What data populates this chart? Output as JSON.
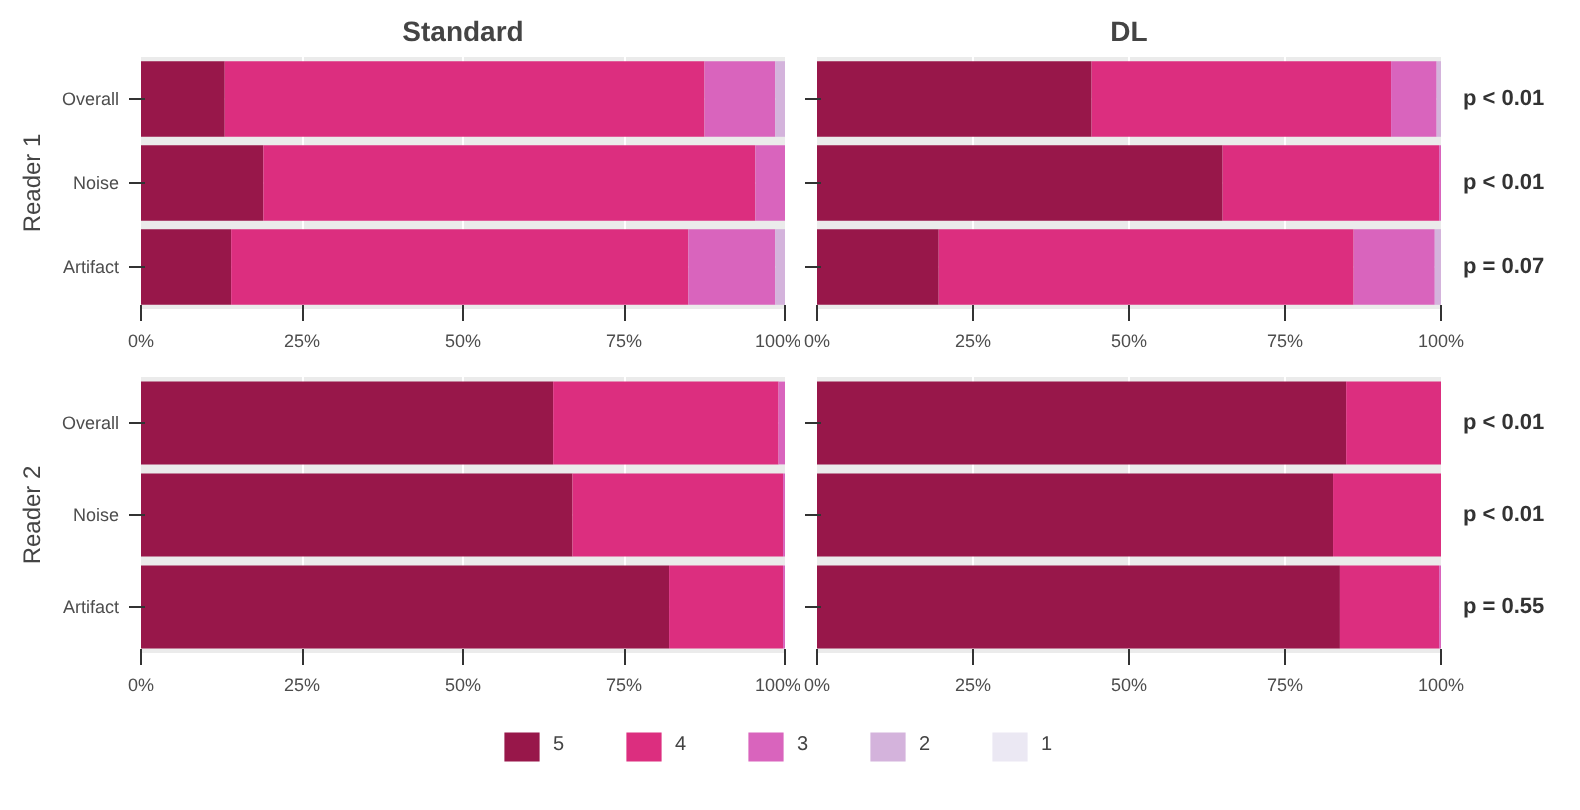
{
  "chart_data": [
    {
      "type": "bar",
      "orientation": "horizontal",
      "stacked": true,
      "title": "Standard",
      "ylabel": "Reader 1",
      "categories": [
        "Overall",
        "Noise",
        "Artifact"
      ],
      "series": [
        {
          "color": "#98174a",
          "values": [
            13,
            19,
            14
          ]
        },
        {
          "color": "#dc2e7f",
          "values": [
            74.5,
            76.4,
            71
          ]
        },
        {
          "color": "#d964bd",
          "values": [
            11,
            4.6,
            13.5
          ]
        },
        {
          "color": "#d4b3dc",
          "values": [
            1.5,
            0,
            1.5
          ]
        }
      ],
      "xlim": [
        0,
        100
      ],
      "xticks": [
        {
          "value": 0,
          "label": "0%"
        },
        {
          "value": 25,
          "label": "25%"
        },
        {
          "value": 50,
          "label": "50%"
        },
        {
          "value": 75,
          "label": "75%"
        },
        {
          "value": 100,
          "label": "100%"
        }
      ],
      "grid": true
    },
    {
      "type": "bar",
      "orientation": "horizontal",
      "stacked": true,
      "title": "DL",
      "categories": [
        null,
        null,
        null
      ],
      "series": [
        {
          "color": "#98174a",
          "values": [
            44,
            65,
            19.5
          ]
        },
        {
          "color": "#dc2e7f",
          "values": [
            48,
            34.7,
            66.5
          ]
        },
        {
          "color": "#d964bd",
          "values": [
            7.3,
            0.3,
            13
          ]
        },
        {
          "color": "#d4b3dc",
          "values": [
            0.7,
            0,
            1
          ]
        }
      ],
      "xlim": [
        0,
        100
      ],
      "xticks": [
        {
          "value": 0,
          "label": "0%"
        },
        {
          "value": 25,
          "label": "25%"
        },
        {
          "value": 50,
          "label": "50%"
        },
        {
          "value": 75,
          "label": "75%"
        },
        {
          "value": 100,
          "label": "100%"
        }
      ],
      "grid": true,
      "tick_labels": "x",
      "annotations": [
        "p < 0.01",
        "p < 0.01",
        "p = 0.07"
      ]
    },
    {
      "type": "bar",
      "orientation": "horizontal",
      "stacked": true,
      "ylabel": "Reader 2",
      "categories": [
        "Overall",
        "Noise",
        "Artifact"
      ],
      "series": [
        {
          "color": "#98174a",
          "values": [
            64,
            67,
            82
          ]
        },
        {
          "color": "#dc2e7f",
          "values": [
            35,
            32.7,
            17.7
          ]
        },
        {
          "color": "#d964bd",
          "values": [
            1,
            0.3,
            0.3
          ]
        }
      ],
      "xlim": [
        0,
        100
      ],
      "xticks": [
        {
          "value": 0,
          "label": "0%"
        },
        {
          "value": 25,
          "label": "25%"
        },
        {
          "value": 50,
          "label": "50%"
        },
        {
          "value": 75,
          "label": "75%"
        },
        {
          "value": 100,
          "label": "100%"
        }
      ],
      "grid": true
    },
    {
      "type": "bar",
      "orientation": "horizontal",
      "stacked": true,
      "categories": [
        null,
        null,
        null
      ],
      "series": [
        {
          "name": "5",
          "color": "#98174a",
          "values": [
            84.8,
            82.7,
            83.8
          ]
        },
        {
          "name": "4",
          "color": "#dc2e7f",
          "values": [
            15.2,
            17.3,
            15.9
          ]
        },
        {
          "name": "3",
          "color": "#d964bd",
          "values": [
            0,
            0,
            0.3
          ]
        },
        {
          "name": "2",
          "color": "#d4b3dc",
          "values": [
            0,
            0,
            0
          ]
        },
        {
          "name": "1",
          "color": "#ebe8f3",
          "values": [
            0,
            0,
            0
          ]
        }
      ],
      "xlim": [
        0,
        100
      ],
      "xticks": [
        {
          "value": 0,
          "label": "0%"
        },
        {
          "value": 25,
          "label": "25%"
        },
        {
          "value": 50,
          "label": "50%"
        },
        {
          "value": 75,
          "label": "75%"
        },
        {
          "value": 100,
          "label": "100%"
        }
      ],
      "grid": true,
      "tick_labels": "x",
      "legend": "bottom",
      "annotations": [
        "p < 0.01",
        "p < 0.01",
        "p = 0.55"
      ]
    }
  ]
}
